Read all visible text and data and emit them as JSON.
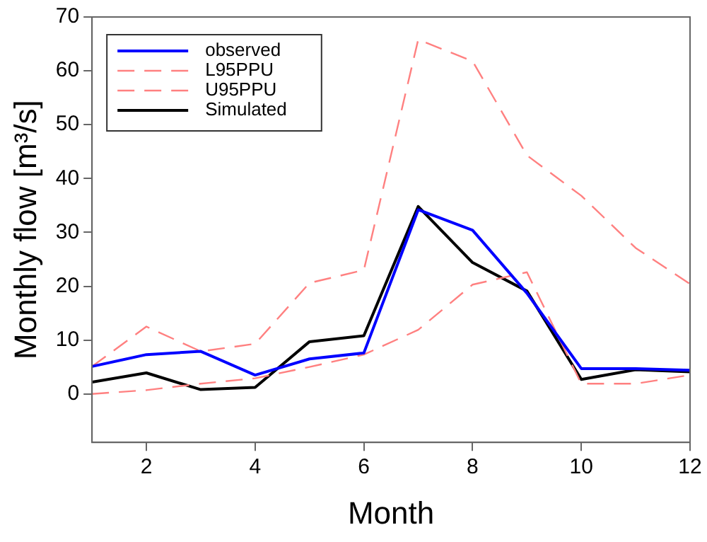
{
  "chart_data": {
    "type": "line",
    "xlabel": "Month",
    "ylabel": "Monthly flow [m³/s]",
    "x": [
      1,
      2,
      3,
      4,
      5,
      6,
      7,
      8,
      9,
      10,
      11,
      12
    ],
    "xlim": [
      1,
      12
    ],
    "xticks": [
      2,
      4,
      6,
      8,
      10,
      12
    ],
    "ylim": [
      -9,
      70
    ],
    "yticks": [
      0,
      10,
      20,
      30,
      40,
      50,
      60,
      70
    ],
    "grid": false,
    "legend": "top left",
    "marker": "none",
    "series": [
      {
        "name": "observed",
        "color": "#0000ff",
        "line_style": "solid",
        "values": [
          5.1,
          7.3,
          7.9,
          3.5,
          6.5,
          7.6,
          34.2,
          30.4,
          18.7,
          4.7,
          4.7,
          4.4
        ]
      },
      {
        "name": "L95PPU",
        "color": "#ff8080",
        "line_style": "dashed",
        "values": [
          0,
          0.7,
          1.9,
          2.9,
          5.0,
          7.3,
          11.9,
          20.3,
          22.6,
          1.9,
          1.9,
          3.5
        ]
      },
      {
        "name": "U95PPU",
        "color": "#ff8080",
        "line_style": "dashed",
        "values": [
          5.1,
          12.5,
          7.9,
          9.3,
          20.6,
          23.0,
          65.8,
          61.8,
          44.3,
          36.8,
          27.1,
          20.4
        ]
      },
      {
        "name": "Simulated",
        "color": "#000000",
        "line_style": "solid",
        "values": [
          2.2,
          3.9,
          0.8,
          1.2,
          9.7,
          10.8,
          34.8,
          24.4,
          19.1,
          2.7,
          4.5,
          4.1
        ]
      }
    ]
  }
}
